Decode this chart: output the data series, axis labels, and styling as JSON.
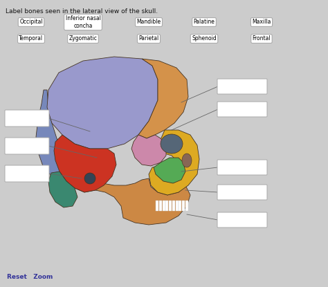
{
  "title": "Label bones seen in the lateral view of the skull.",
  "bg": "#cccccc",
  "word_bank_row1": [
    "Occipital",
    "Inferior nasal\nconcha",
    "Mandible",
    "Palatine",
    "Maxilla"
  ],
  "word_bank_row2": [
    "Temporal",
    "Zygomatic",
    "Parietal",
    "Sphenoid",
    "Frontal"
  ],
  "reset_zoom_text": "Reset   Zoom",
  "colors": {
    "parietal": "#9999cc",
    "frontal": "#d4924a",
    "occipital": "#7788bb",
    "temporal": "#cc3322",
    "mastoid": "#3a8870",
    "sphenoid": "#cc88aa",
    "zygomatic": "#55aa55",
    "maxilla": "#ddaa22",
    "mandible": "#cc8844",
    "nasal": "#bb7755",
    "palatine": "#cc88aa",
    "orbit_dark": "#556677",
    "skull_outline": "#443322"
  }
}
